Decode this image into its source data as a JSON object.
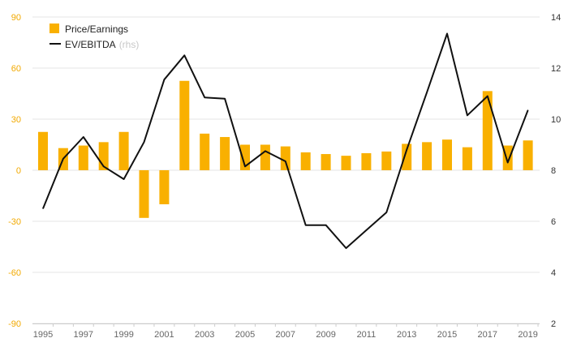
{
  "chart_data": {
    "type": "bar+line",
    "categories": [
      1995,
      1996,
      1997,
      1998,
      1999,
      2000,
      2001,
      2002,
      2003,
      2004,
      2005,
      2006,
      2007,
      2008,
      2009,
      2010,
      2011,
      2012,
      2013,
      2014,
      2015,
      2016,
      2017,
      2018,
      2019
    ],
    "x_tick_labels": [
      "1995",
      "1997",
      "1999",
      "2001",
      "2003",
      "2005",
      "2007",
      "2009",
      "2011",
      "2013",
      "2015",
      "2017",
      "2019"
    ],
    "series": [
      {
        "name": "Price/Earnings",
        "type": "bar",
        "axis": "left",
        "color": "#f9b000",
        "values": [
          22.5,
          13,
          14.5,
          16.5,
          22.5,
          -28,
          -20,
          52.5,
          21.5,
          19.5,
          15,
          15,
          14,
          10.5,
          9.5,
          8.5,
          10,
          11,
          15.5,
          16.5,
          18,
          13.5,
          46.5,
          14.5,
          17.5
        ]
      },
      {
        "name": "EV/EBITDA",
        "note": "(rhs)",
        "type": "line",
        "axis": "right",
        "color": "#111111",
        "values": [
          6.5,
          8.45,
          9.3,
          8.15,
          7.65,
          9.1,
          11.55,
          12.5,
          10.85,
          10.8,
          8.15,
          8.75,
          8.35,
          5.85,
          5.85,
          4.95,
          5.65,
          6.35,
          8.8,
          11.05,
          13.35,
          10.15,
          10.9,
          8.3,
          10.35
        ]
      }
    ],
    "y_left": {
      "min": -90,
      "max": 90,
      "ticks": [
        90,
        60,
        30,
        0,
        -30,
        -60,
        -90
      ],
      "color": "#f2a900"
    },
    "y_right": {
      "min": 2,
      "max": 14,
      "ticks": [
        14,
        12,
        10,
        8,
        6,
        4,
        2
      ]
    },
    "grid": true,
    "legend": "top-left"
  }
}
